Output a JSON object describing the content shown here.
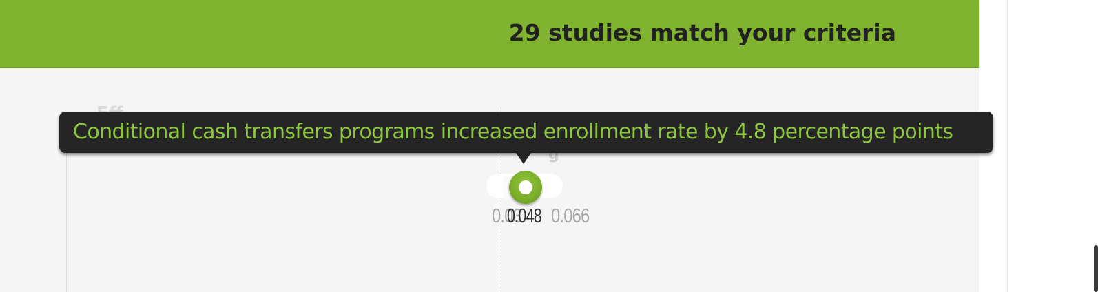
{
  "header": {
    "result_count_text": "29 studies match your criteria",
    "background_color": "#80b32f"
  },
  "plot": {
    "tooltip_text": "Conditional cash transfers programs increased enrollment rate by 4.8 percentage points",
    "tooltip_text_color": "#8dc63f",
    "estimate": {
      "value_label": "0.048",
      "ci_low_label": "0.03",
      "ci_high_label": "0.066",
      "marker_color": "#80b32f"
    }
  }
}
